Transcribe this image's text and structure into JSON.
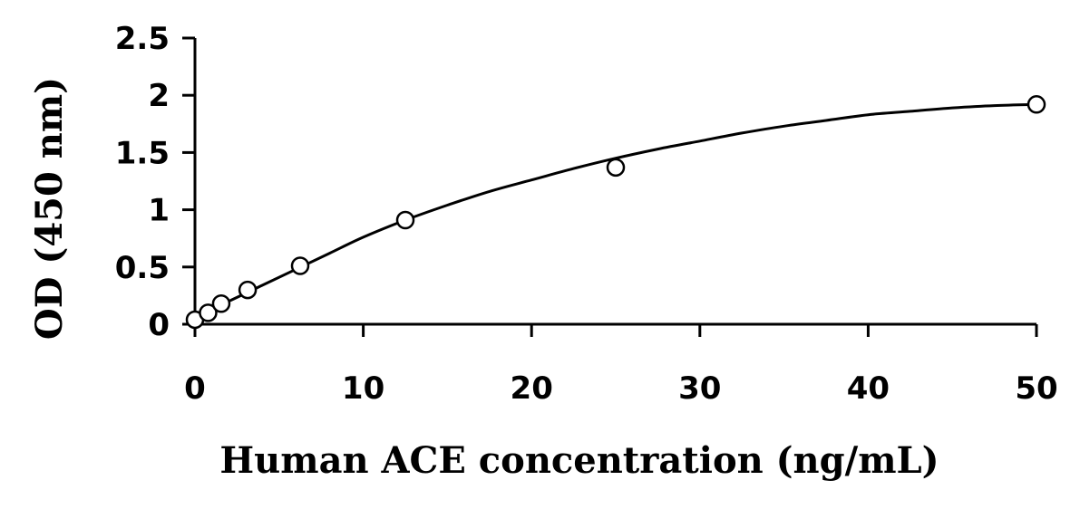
{
  "chart_data": {
    "type": "scatter",
    "xlabel": "Human ACE concentration (ng/mL)",
    "ylabel": "OD (450 nm)",
    "xlim": [
      0,
      50
    ],
    "ylim": [
      0,
      2.5
    ],
    "x_ticks": [
      0,
      10,
      20,
      30,
      40,
      50
    ],
    "x_tick_labels": [
      "0",
      "10",
      "20",
      "30",
      "40",
      "50"
    ],
    "y_ticks": [
      0,
      0.5,
      1,
      1.5,
      2,
      2.5
    ],
    "y_tick_labels": [
      "0",
      "0.5",
      "1",
      "1.5",
      "2",
      "2.5"
    ],
    "grid": false,
    "legend": "none",
    "series": [
      {
        "marker": "open-circle",
        "x": [
          0,
          0.78,
          1.56,
          3.13,
          6.25,
          12.5,
          25,
          50
        ],
        "y": [
          0.04,
          0.1,
          0.18,
          0.3,
          0.51,
          0.91,
          1.37,
          1.92
        ]
      }
    ],
    "fit_curve": {
      "style": "smooth-line",
      "x": [
        0,
        2,
        4,
        6,
        8,
        10,
        12.5,
        15,
        17.5,
        20,
        22.5,
        25,
        27.5,
        30,
        32.5,
        35,
        37.5,
        40,
        42.5,
        45,
        47.5,
        50
      ],
      "y": [
        0.07,
        0.2,
        0.34,
        0.48,
        0.62,
        0.76,
        0.91,
        1.04,
        1.16,
        1.26,
        1.36,
        1.45,
        1.53,
        1.6,
        1.67,
        1.73,
        1.78,
        1.83,
        1.86,
        1.89,
        1.91,
        1.92
      ]
    }
  }
}
